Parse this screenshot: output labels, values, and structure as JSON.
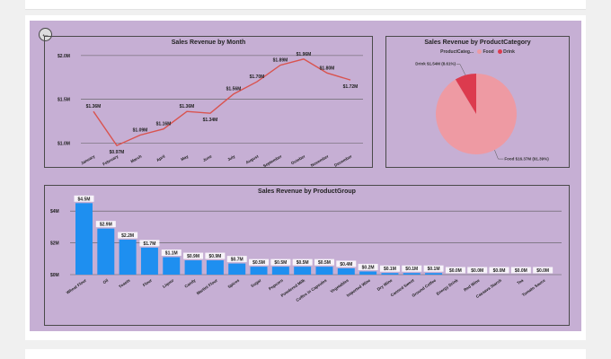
{
  "monthly": {
    "title": "Sales Revenue by Month",
    "chart_data": {
      "type": "line",
      "categories": [
        "January",
        "February",
        "March",
        "April",
        "May",
        "June",
        "July",
        "August",
        "September",
        "October",
        "November",
        "December"
      ],
      "values": [
        1.36,
        0.97,
        1.09,
        1.16,
        1.36,
        1.34,
        1.56,
        1.7,
        1.89,
        1.96,
        1.8,
        1.72
      ],
      "data_labels": [
        "$1.36M",
        "$0.97M",
        "$1.09M",
        "$1.16M",
        "$1.36M",
        "$1.34M",
        "$1.56M",
        "$1.70M",
        "$1.89M",
        "$1.96M",
        "$1.80M",
        "$1.72M"
      ],
      "ylim": [
        0.9,
        2.05
      ],
      "yticks": [
        1.0,
        1.5,
        2.0
      ],
      "ytick_labels": [
        "$1.0M",
        "$1.5M",
        "$2.0M"
      ],
      "line_color": "#d9534f",
      "grid": true
    }
  },
  "category": {
    "title": "Sales Revenue by ProductCategory",
    "legend_label": "ProductCateg...",
    "chart_data": {
      "type": "pie",
      "categories": [
        "Food",
        "Drink"
      ],
      "values": [
        16.37,
        1.54
      ],
      "colors": [
        "#ee9aa3",
        "#dc3b4e"
      ],
      "data_labels": [
        "Food $16.37M (91.39%)",
        "Drink $1.54M (8.61%)"
      ]
    }
  },
  "group": {
    "title": "Sales Revenue by ProductGroup",
    "chart_data": {
      "type": "bar",
      "categories": [
        "Wheat Flour",
        "Oil",
        "Yeasts",
        "Flour",
        "Liquor",
        "Candy",
        "Martini Flour",
        "Spices",
        "Sugar",
        "Popcorn",
        "Powdered Milk",
        "Coffee in Capsules",
        "Vegetables",
        "Imported Wine",
        "Dry Wine",
        "Canned Sweet",
        "Ground Coffee",
        "Energy Drink",
        "Red Wine",
        "Cassava Starch",
        "Tea",
        "Tomato Sauce"
      ],
      "values": [
        4.5,
        2.9,
        2.2,
        1.7,
        1.1,
        0.9,
        0.9,
        0.7,
        0.5,
        0.5,
        0.5,
        0.5,
        0.4,
        0.2,
        0.1,
        0.1,
        0.1,
        0.0,
        0.0,
        0.0,
        0.0,
        0.0
      ],
      "data_labels": [
        "$4.5M",
        "$2.9M",
        "$2.2M",
        "$1.7M",
        "$1.1M",
        "$0.9M",
        "$0.9M",
        "$0.7M",
        "$0.5M",
        "$0.5M",
        "$0.5M",
        "$0.5M",
        "$0.4M",
        "$0.2M",
        "$0.1M",
        "$0.1M",
        "$0.1M",
        "$0.0M",
        "$0.0M",
        "$0.0M",
        "$0.0M",
        "$0.0M"
      ],
      "ylim": [
        0,
        4.8
      ],
      "yticks": [
        0,
        2,
        4
      ],
      "ytick_labels": [
        "$0M",
        "$2M",
        "$4M"
      ],
      "bar_color": "#1e8ff0",
      "grid": true
    }
  }
}
